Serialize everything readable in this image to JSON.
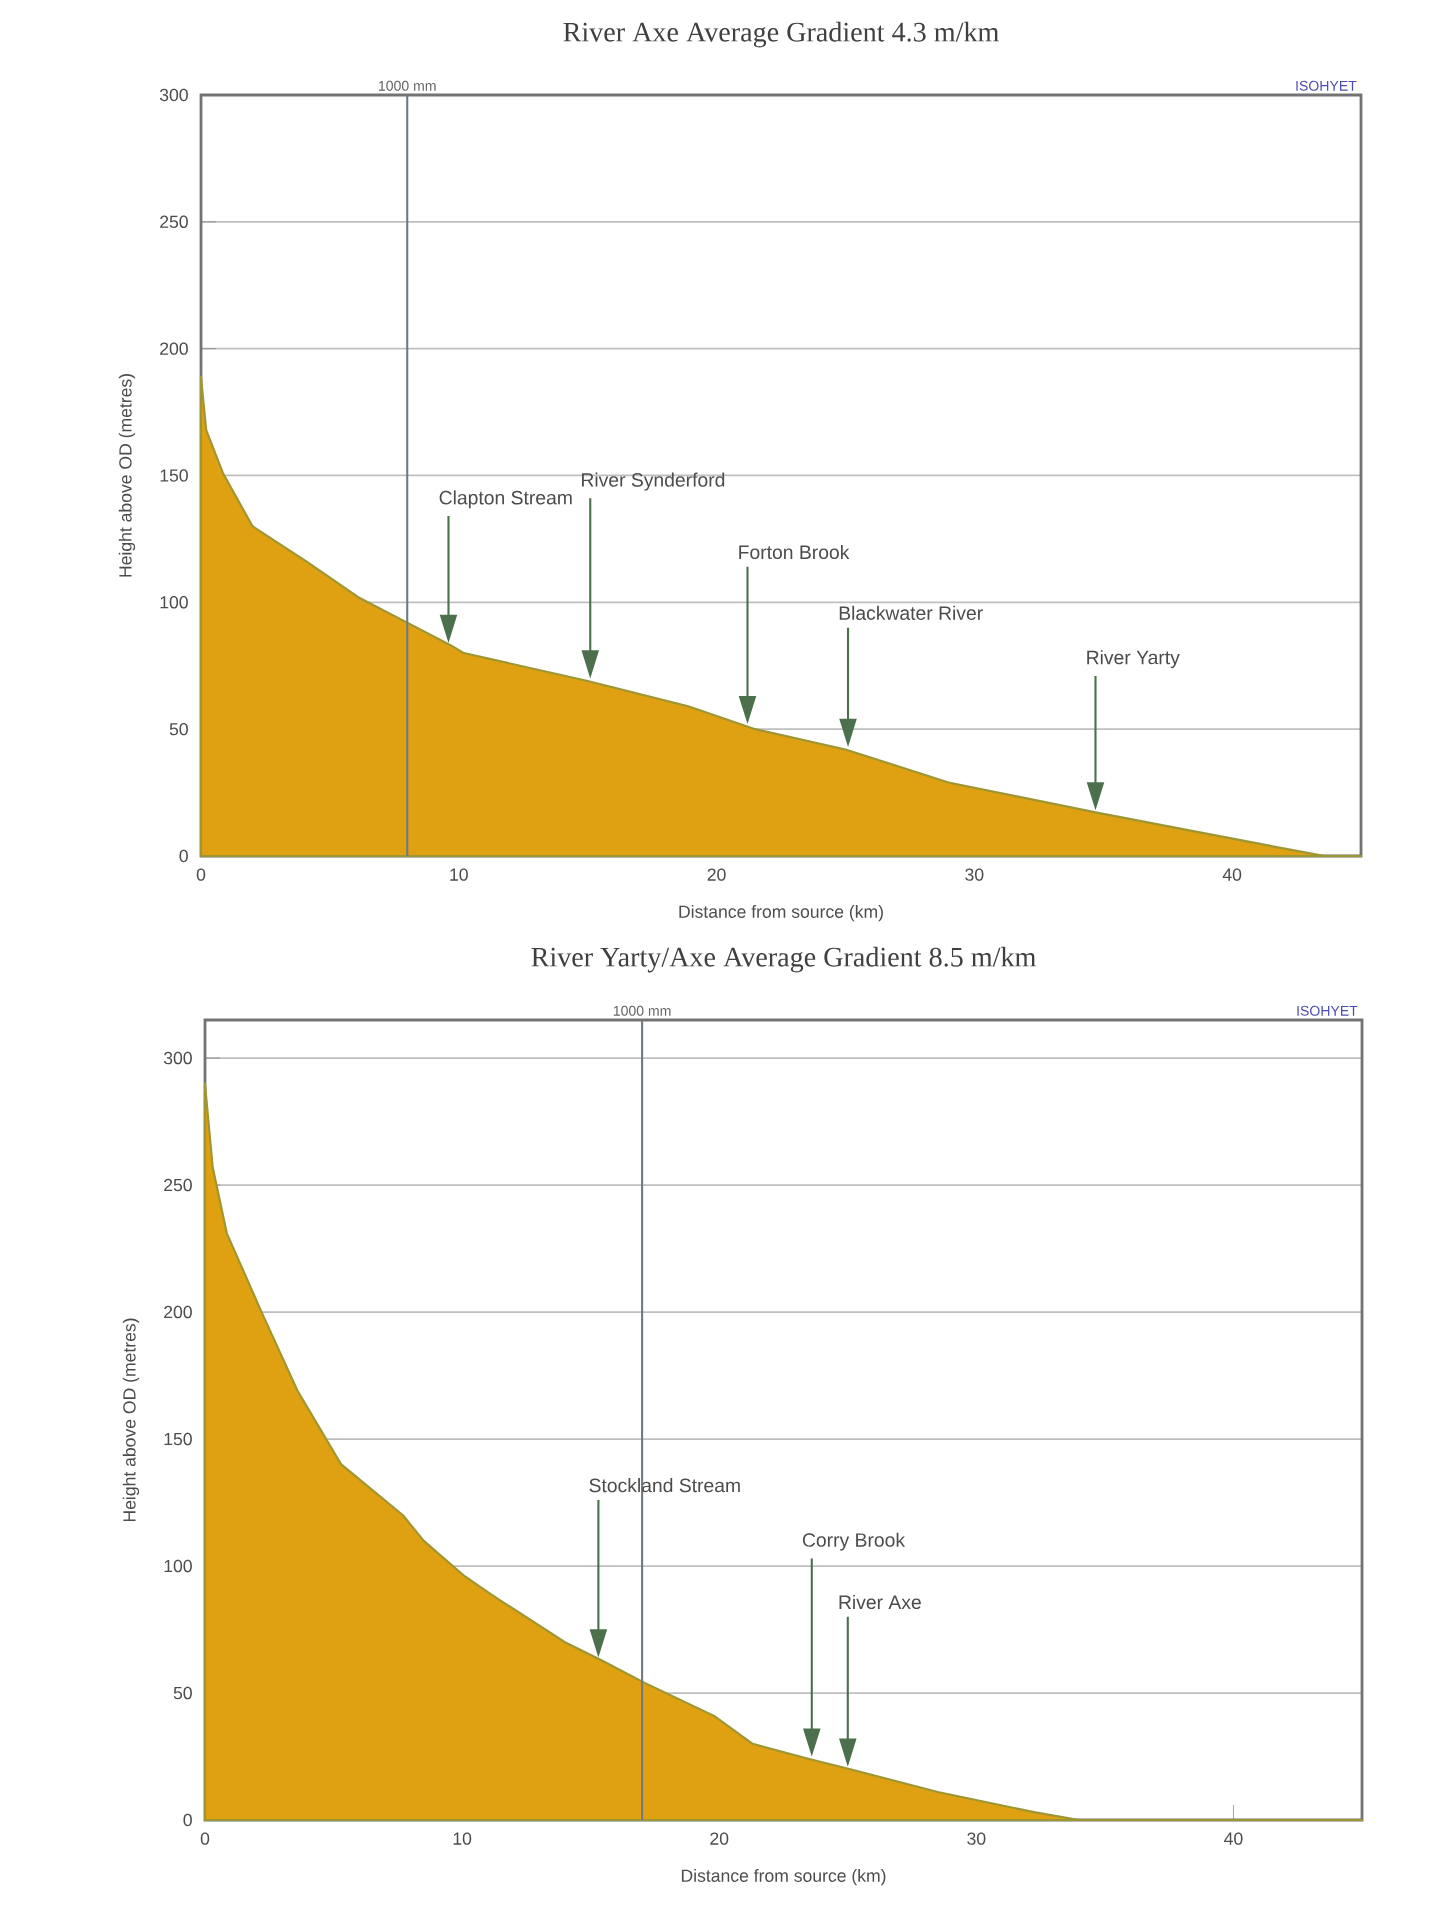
{
  "chart_data": [
    {
      "type": "area",
      "title": "River Axe Average Gradient 4.3 m/km",
      "xlabel": "Distance from source (km)",
      "ylabel": "Height above OD (metres)",
      "x": [
        0,
        0.2,
        0.85,
        2,
        4.1,
        6.1,
        8,
        9.7,
        10.2,
        15,
        18.9,
        21.5,
        25,
        29,
        34.8,
        38.9,
        42.3,
        43.6,
        45
      ],
      "values": [
        189,
        168,
        151,
        130,
        116,
        102,
        92,
        83,
        80,
        69,
        59,
        50,
        42,
        29,
        17,
        9,
        2.4,
        0,
        0
      ],
      "color": "#dfa012",
      "xlim": [
        0,
        45
      ],
      "ylim": [
        0,
        300
      ],
      "xticks": [
        0,
        10,
        20,
        30,
        40
      ],
      "yticks": [
        0,
        50,
        100,
        150,
        200,
        250,
        300
      ],
      "grid": "y",
      "ref_lines": [
        {
          "axis": "x",
          "value": 8,
          "label": "1000 mm",
          "color": "#707a80"
        }
      ],
      "annotations": [
        "ISOHYET",
        "Clapton Stream",
        "River Synderford",
        "Forton Brook",
        "Blackwater River",
        "River Yarty"
      ]
    },
    {
      "type": "area",
      "title": "River Yarty/Axe Average Gradient 8.5 m/km",
      "xlabel": "Distance from source (km)",
      "ylabel": "Height above OD (metres)",
      "x": [
        0,
        0.3,
        0.85,
        2.2,
        3.6,
        5.3,
        7.7,
        8.5,
        10.1,
        11.1,
        14,
        15.4,
        17.1,
        19.8,
        21.3,
        23.5,
        25.1,
        28.5,
        32.3,
        34,
        45
      ],
      "values": [
        290,
        257,
        231,
        200,
        169,
        140,
        120,
        110,
        96,
        89,
        70,
        63,
        54,
        41,
        30,
        24,
        20,
        11,
        3,
        0,
        0
      ],
      "color": "#dfa012",
      "xlim": [
        0,
        45
      ],
      "ylim": [
        0,
        315
      ],
      "xticks": [
        0,
        10,
        20,
        30,
        40
      ],
      "yticks": [
        0,
        50,
        100,
        150,
        200,
        250,
        300
      ],
      "grid": "y",
      "ref_lines": [
        {
          "axis": "x",
          "value": 17,
          "label": "1000 mm",
          "color": "#707a80"
        }
      ],
      "annotations": [
        "ISOHYET",
        "Stockland Stream",
        "Corry Brook",
        "River Axe"
      ]
    }
  ]
}
